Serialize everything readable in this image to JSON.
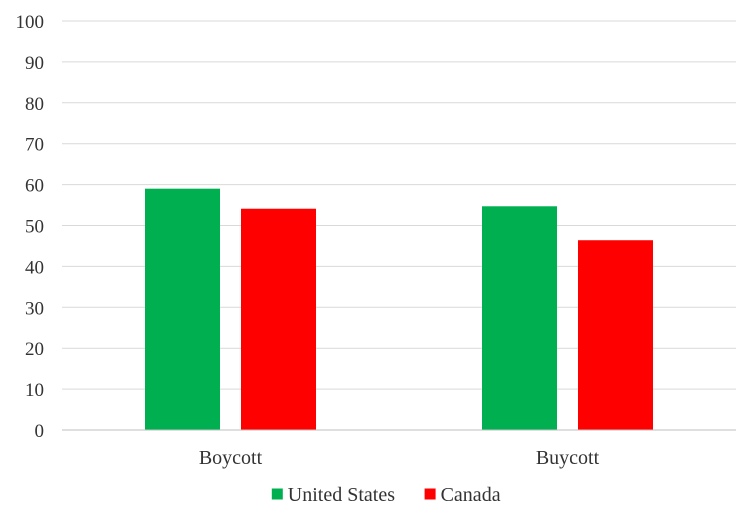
{
  "chart_data": {
    "type": "bar",
    "title": "",
    "xlabel": "",
    "ylabel": "",
    "categories": [
      "Boycott",
      "Buycott"
    ],
    "series": [
      {
        "name": "United States",
        "color": "#00B050",
        "values": [
          59,
          54.7
        ]
      },
      {
        "name": "Canada",
        "color": "#FF0000",
        "values": [
          54.1,
          46.4
        ]
      }
    ],
    "ylim": [
      0,
      100
    ],
    "yticks": [
      0,
      10,
      20,
      30,
      40,
      50,
      60,
      70,
      80,
      90,
      100
    ],
    "grid": true,
    "legend_position": "bottom"
  }
}
